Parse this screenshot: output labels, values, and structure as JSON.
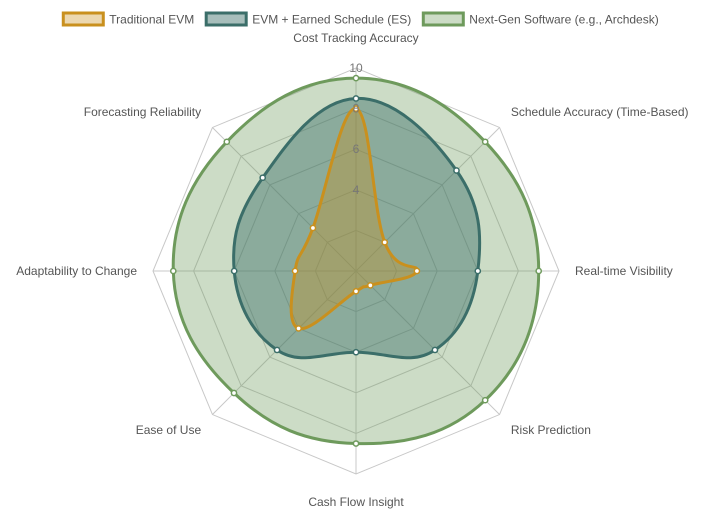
{
  "chart_data": {
    "type": "radar",
    "categories": [
      "Cost Tracking Accuracy",
      "Schedule Accuracy (Time-Based)",
      "Real-time Visibility",
      "Risk Prediction",
      "Cash Flow Insight",
      "Ease of Use",
      "Adaptability to Change",
      "Forecasting Reliability"
    ],
    "series": [
      {
        "name": "Traditional EVM",
        "values": [
          8,
          2,
          3,
          1,
          1,
          4,
          3,
          3
        ],
        "stroke": "#C9901E",
        "fill": "rgba(201,144,30,0.35)"
      },
      {
        "name": "EVM + Earned Schedule (ES)",
        "values": [
          8.5,
          7,
          6,
          5.5,
          4,
          5.5,
          6,
          6.5
        ],
        "stroke": "#3B6E69",
        "fill": "rgba(59,110,105,0.45)"
      },
      {
        "name": "Next-Gen Software (e.g., Archdesk)",
        "values": [
          9.5,
          9,
          9,
          9,
          8.5,
          8.5,
          9,
          9
        ],
        "stroke": "#6E9A5C",
        "fill": "rgba(110,154,92,0.35)"
      }
    ],
    "r_range": [
      0,
      10
    ],
    "ticks": [
      "4",
      "6",
      "8",
      "10"
    ],
    "grid": true,
    "legend_position": "top"
  }
}
